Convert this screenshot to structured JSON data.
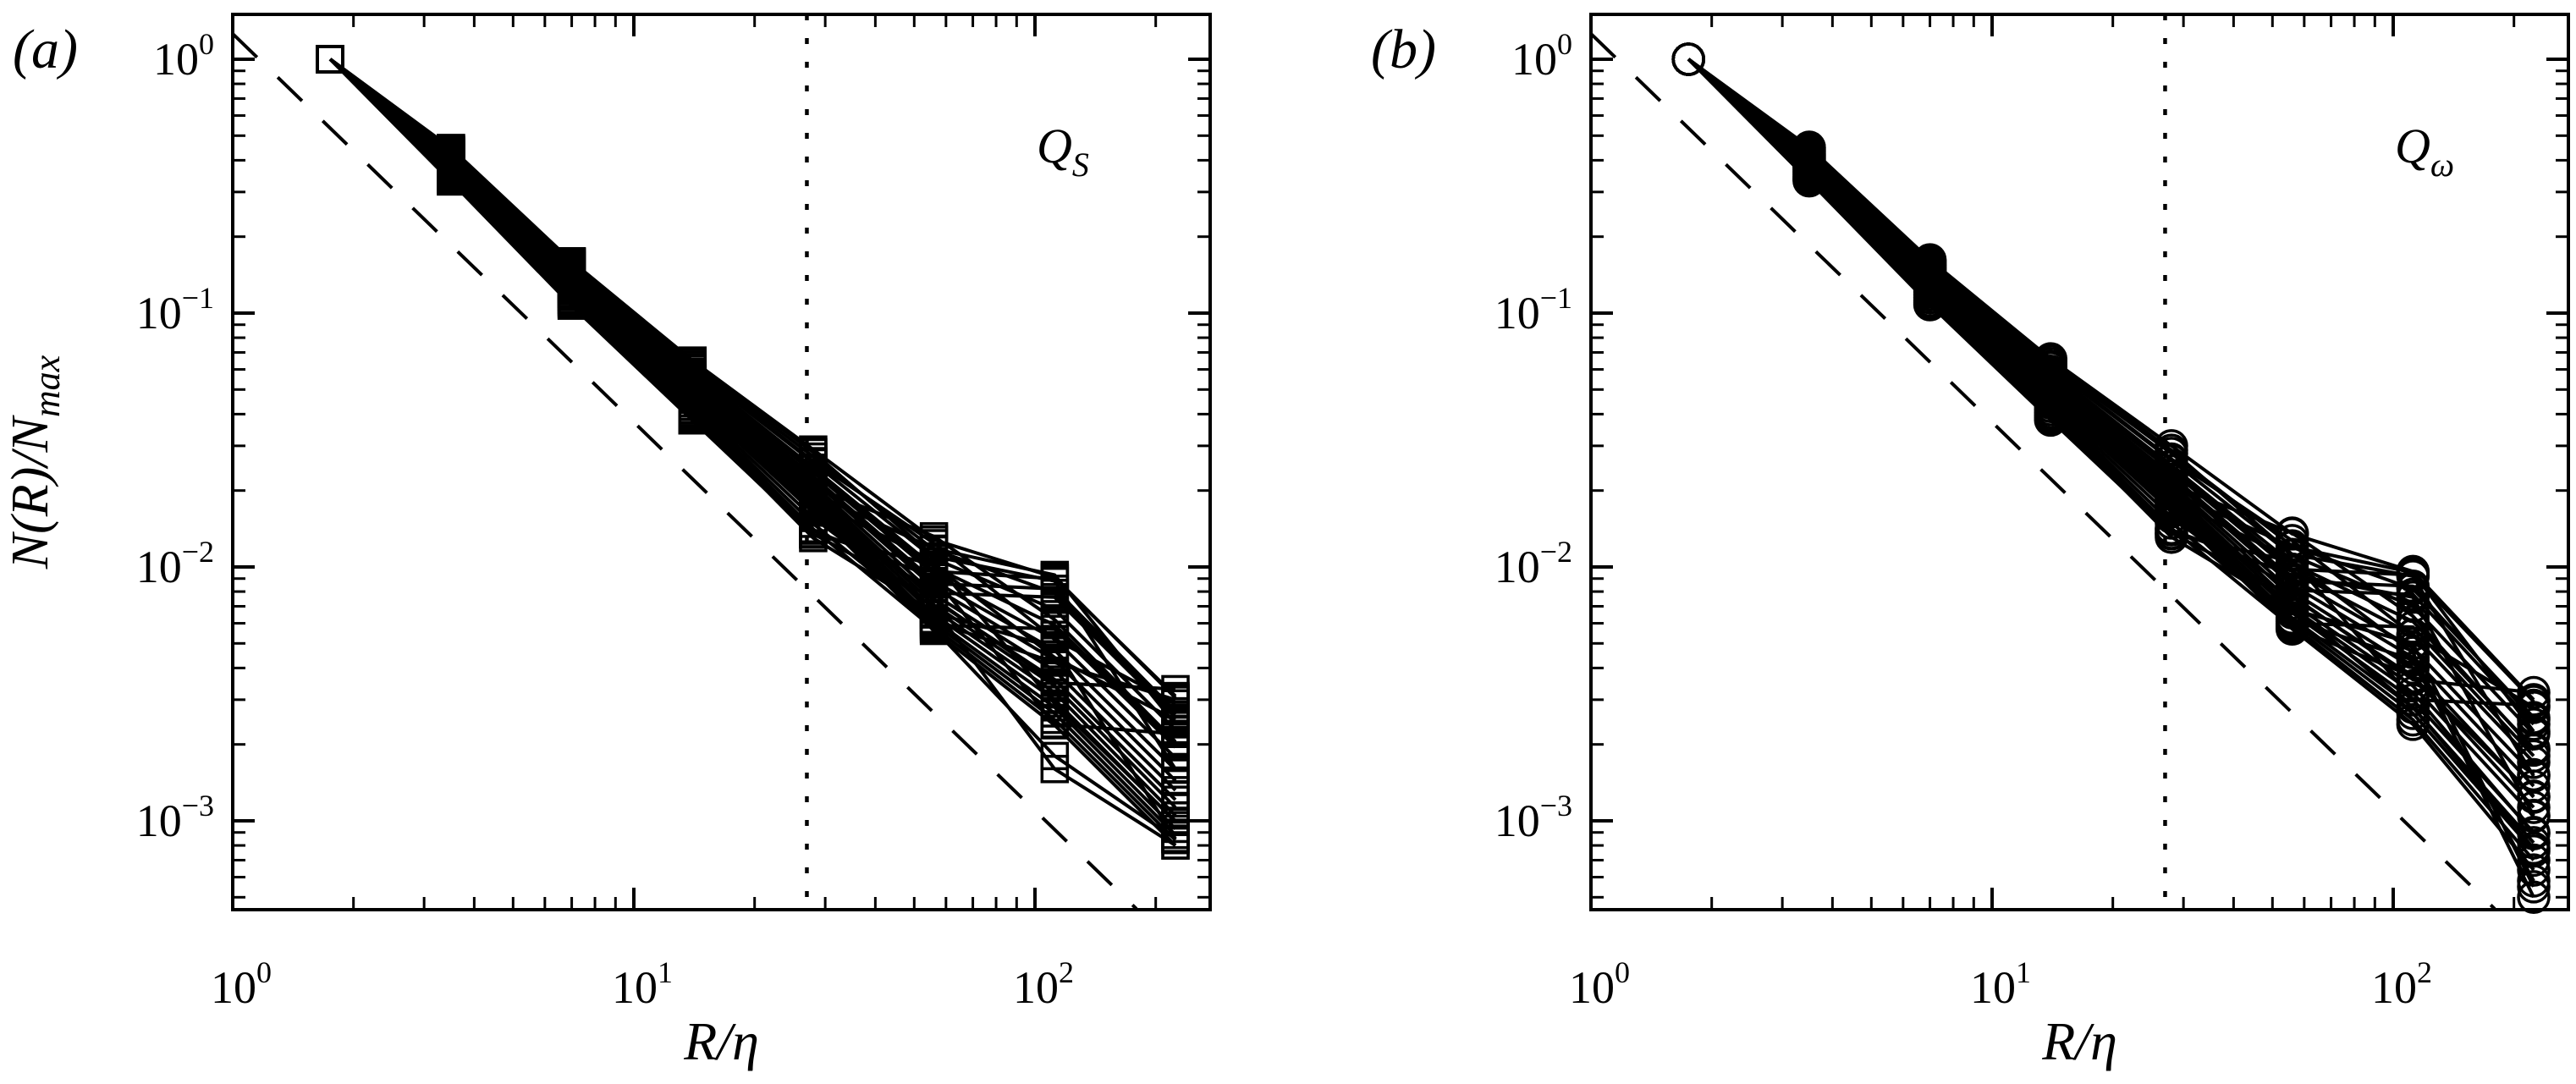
{
  "figure": {
    "background": "#ffffff",
    "ink": "#000000",
    "description": "Two-panel log-log box-counting figure"
  },
  "chart_data": [
    {
      "type": "line",
      "panel_label": "(a)",
      "annotation_main": "Q",
      "annotation_sub": "S",
      "marker": "square",
      "xlabel": "R/η",
      "ylabel_main": "N(R)/N",
      "ylabel_sub": "max",
      "x": [
        1.75,
        3.5,
        7,
        14,
        28,
        56,
        112,
        224
      ],
      "xlim": [
        1,
        273
      ],
      "ylim": [
        0.00045,
        1.5
      ],
      "x_tick_exponents": [
        0,
        1,
        2
      ],
      "y_tick_exponents": [
        0,
        -1,
        -2,
        -3
      ],
      "reference_dashed_line": {
        "coefficient": 1.26,
        "slope": -1.53
      },
      "vertical_dotted_line_x": 27,
      "series": [
        [
          1,
          0.447,
          0.16,
          0.065,
          0.029,
          0.0128,
          0.0091,
          0.00305
        ],
        [
          1,
          0.442,
          0.156,
          0.0625,
          0.0272,
          0.0117,
          0.0079,
          0.00262
        ],
        [
          1,
          0.437,
          0.153,
          0.0605,
          0.0258,
          0.0108,
          0.0068,
          0.00228
        ],
        [
          1,
          0.433,
          0.15,
          0.0588,
          0.0246,
          0.01,
          0.0059,
          0.002
        ],
        [
          1,
          0.428,
          0.147,
          0.0572,
          0.0236,
          0.0094,
          0.0052,
          0.00177
        ],
        [
          1,
          0.424,
          0.145,
          0.0558,
          0.0227,
          0.0088,
          0.0047,
          0.00159
        ],
        [
          1,
          0.42,
          0.142,
          0.0545,
          0.0219,
          0.0083,
          0.0043,
          0.00144
        ],
        [
          1,
          0.416,
          0.14,
          0.0533,
          0.0211,
          0.0078,
          0.0039,
          0.00132
        ],
        [
          1,
          0.412,
          0.138,
          0.0522,
          0.0204,
          0.0074,
          0.0036,
          0.00121
        ],
        [
          1,
          0.408,
          0.136,
          0.0512,
          0.0198,
          0.0071,
          0.0034,
          0.00113
        ],
        [
          1,
          0.404,
          0.134,
          0.0502,
          0.0192,
          0.0068,
          0.0032,
          0.00105
        ],
        [
          1,
          0.4,
          0.132,
          0.0493,
          0.0186,
          0.0065,
          0.003,
          0.00099
        ],
        [
          1,
          0.396,
          0.13,
          0.0484,
          0.0181,
          0.0062,
          0.0028,
          0.00093
        ],
        [
          1,
          0.392,
          0.128,
          0.0476,
          0.0176,
          0.006,
          0.00265,
          0.00088
        ],
        [
          1,
          0.388,
          0.127,
          0.0468,
          0.0171,
          0.0058,
          0.0025,
          0.00084
        ],
        [
          1,
          0.384,
          0.125,
          0.0461,
          0.0167,
          0.0056,
          0.00238,
          0.0008
        ],
        [
          1,
          0.446,
          0.159,
          0.0642,
          0.0283,
          0.011,
          0.0088,
          0.0016
        ],
        [
          1,
          0.438,
          0.154,
          0.061,
          0.0261,
          0.0124,
          0.0052,
          0.0029
        ],
        [
          1,
          0.43,
          0.149,
          0.058,
          0.0243,
          0.0096,
          0.009,
          0.0031
        ],
        [
          1,
          0.422,
          0.144,
          0.0552,
          0.0224,
          0.0086,
          0.0082,
          0.0027
        ],
        [
          1,
          0.414,
          0.139,
          0.0528,
          0.0208,
          0.0132,
          0.0062,
          0.00205
        ],
        [
          1,
          0.406,
          0.135,
          0.0507,
          0.0195,
          0.0118,
          0.0093,
          0.0024
        ],
        [
          1,
          0.398,
          0.131,
          0.0488,
          0.0183,
          0.0105,
          0.0029,
          0.001
        ],
        [
          1,
          0.39,
          0.128,
          0.0471,
          0.0173,
          0.0059,
          0.0057,
          0.00195
        ],
        [
          1,
          0.382,
          0.125,
          0.0455,
          0.0164,
          0.0079,
          0.0076,
          0.00255
        ],
        [
          1,
          0.374,
          0.122,
          0.0441,
          0.0156,
          0.0069,
          0.0016,
          0.0008
        ],
        [
          1,
          0.366,
          0.119,
          0.0428,
          0.0148,
          0.0061,
          0.0042,
          0.003
        ],
        [
          1,
          0.358,
          0.116,
          0.0416,
          0.0141,
          0.0057,
          0.0018,
          0.00085
        ],
        [
          1,
          0.35,
          0.113,
          0.0405,
          0.0135,
          0.0075,
          0.0035,
          0.0033
        ],
        [
          1,
          0.342,
          0.111,
          0.0395,
          0.013,
          0.0066,
          0.0048,
          0.00085
        ],
        [
          1,
          0.336,
          0.109,
          0.0386,
          0.0139,
          0.0091,
          0.0024,
          0.0022
        ],
        [
          1,
          0.33,
          0.107,
          0.0378,
          0.0134,
          0.0102,
          0.0044,
          0.0025
        ]
      ]
    },
    {
      "type": "line",
      "panel_label": "(b)",
      "annotation_main": "Q",
      "annotation_sub": "ω",
      "marker": "circle",
      "xlabel": "R/η",
      "ylabel_main": "",
      "ylabel_sub": "",
      "x": [
        1.75,
        3.5,
        7,
        14,
        28,
        56,
        112,
        224
      ],
      "xlim": [
        1,
        273
      ],
      "ylim": [
        0.00045,
        1.5
      ],
      "x_tick_exponents": [
        0,
        1,
        2
      ],
      "y_tick_exponents": [
        0,
        -1,
        -2,
        -3
      ],
      "reference_dashed_line": {
        "coefficient": 1.26,
        "slope": -1.53
      },
      "vertical_dotted_line_x": 27,
      "series": [
        [
          1,
          0.45,
          0.162,
          0.066,
          0.03,
          0.0135,
          0.0096,
          0.003
        ],
        [
          1,
          0.444,
          0.158,
          0.0632,
          0.028,
          0.0121,
          0.0082,
          0.00255
        ],
        [
          1,
          0.438,
          0.154,
          0.0608,
          0.0263,
          0.0111,
          0.007,
          0.0022
        ],
        [
          1,
          0.433,
          0.151,
          0.059,
          0.025,
          0.0103,
          0.0061,
          0.00193
        ],
        [
          1,
          0.428,
          0.148,
          0.0573,
          0.0239,
          0.0096,
          0.0054,
          0.0017
        ],
        [
          1,
          0.423,
          0.145,
          0.0558,
          0.0229,
          0.009,
          0.0048,
          0.00152
        ],
        [
          1,
          0.419,
          0.143,
          0.0545,
          0.0221,
          0.0085,
          0.0044,
          0.00137
        ],
        [
          1,
          0.415,
          0.141,
          0.0532,
          0.0213,
          0.008,
          0.004,
          0.00124
        ],
        [
          1,
          0.411,
          0.139,
          0.0521,
          0.0206,
          0.0076,
          0.0037,
          0.00113
        ],
        [
          1,
          0.407,
          0.137,
          0.051,
          0.0199,
          0.0072,
          0.0034,
          0.00104
        ],
        [
          1,
          0.403,
          0.135,
          0.05,
          0.0193,
          0.0069,
          0.0032,
          0.00089
        ],
        [
          1,
          0.399,
          0.133,
          0.0491,
          0.0187,
          0.0066,
          0.003,
          0.00285
        ],
        [
          1,
          0.395,
          0.131,
          0.0482,
          0.0182,
          0.0063,
          0.0028,
          0.00082
        ],
        [
          1,
          0.391,
          0.129,
          0.0474,
          0.0177,
          0.0061,
          0.00265,
          0.00076
        ],
        [
          1,
          0.387,
          0.127,
          0.0466,
          0.0172,
          0.0059,
          0.0025,
          0.0007
        ],
        [
          1,
          0.383,
          0.126,
          0.0458,
          0.0168,
          0.0057,
          0.0024,
          0.00064
        ],
        [
          1,
          0.448,
          0.16,
          0.0648,
          0.0288,
          0.0112,
          0.0092,
          0.0015
        ],
        [
          1,
          0.44,
          0.155,
          0.0616,
          0.0266,
          0.0127,
          0.0054,
          0.0028
        ],
        [
          1,
          0.432,
          0.15,
          0.0586,
          0.0247,
          0.0098,
          0.0093,
          0.00295
        ],
        [
          1,
          0.424,
          0.146,
          0.0558,
          0.0228,
          0.0088,
          0.0084,
          0.0025
        ],
        [
          1,
          0.416,
          0.141,
          0.0532,
          0.0211,
          0.0136,
          0.0064,
          0.0019
        ],
        [
          1,
          0.408,
          0.137,
          0.0509,
          0.0197,
          0.012,
          0.0095,
          0.00225
        ],
        [
          1,
          0.4,
          0.133,
          0.0489,
          0.0184,
          0.0107,
          0.003,
          0.0009
        ],
        [
          1,
          0.392,
          0.13,
          0.0472,
          0.0174,
          0.006,
          0.0058,
          0.0018
        ],
        [
          1,
          0.384,
          0.127,
          0.0456,
          0.0165,
          0.0081,
          0.0078,
          0.0024
        ],
        [
          1,
          0.376,
          0.124,
          0.0442,
          0.0157,
          0.007,
          0.0028,
          0.00078
        ],
        [
          1,
          0.368,
          0.121,
          0.0429,
          0.0149,
          0.0062,
          0.0043,
          0.00058
        ],
        [
          1,
          0.36,
          0.118,
          0.0417,
          0.0142,
          0.0058,
          0.0037,
          0.00125
        ],
        [
          1,
          0.352,
          0.115,
          0.0406,
          0.0136,
          0.0077,
          0.0036,
          0.0032
        ],
        [
          1,
          0.344,
          0.112,
          0.0396,
          0.0131,
          0.0068,
          0.005,
          0.00055
        ],
        [
          1,
          0.338,
          0.11,
          0.0387,
          0.014,
          0.0093,
          0.0076,
          0.00105
        ],
        [
          1,
          0.332,
          0.108,
          0.0379,
          0.0135,
          0.0105,
          0.0046,
          0.0005
        ]
      ]
    }
  ]
}
